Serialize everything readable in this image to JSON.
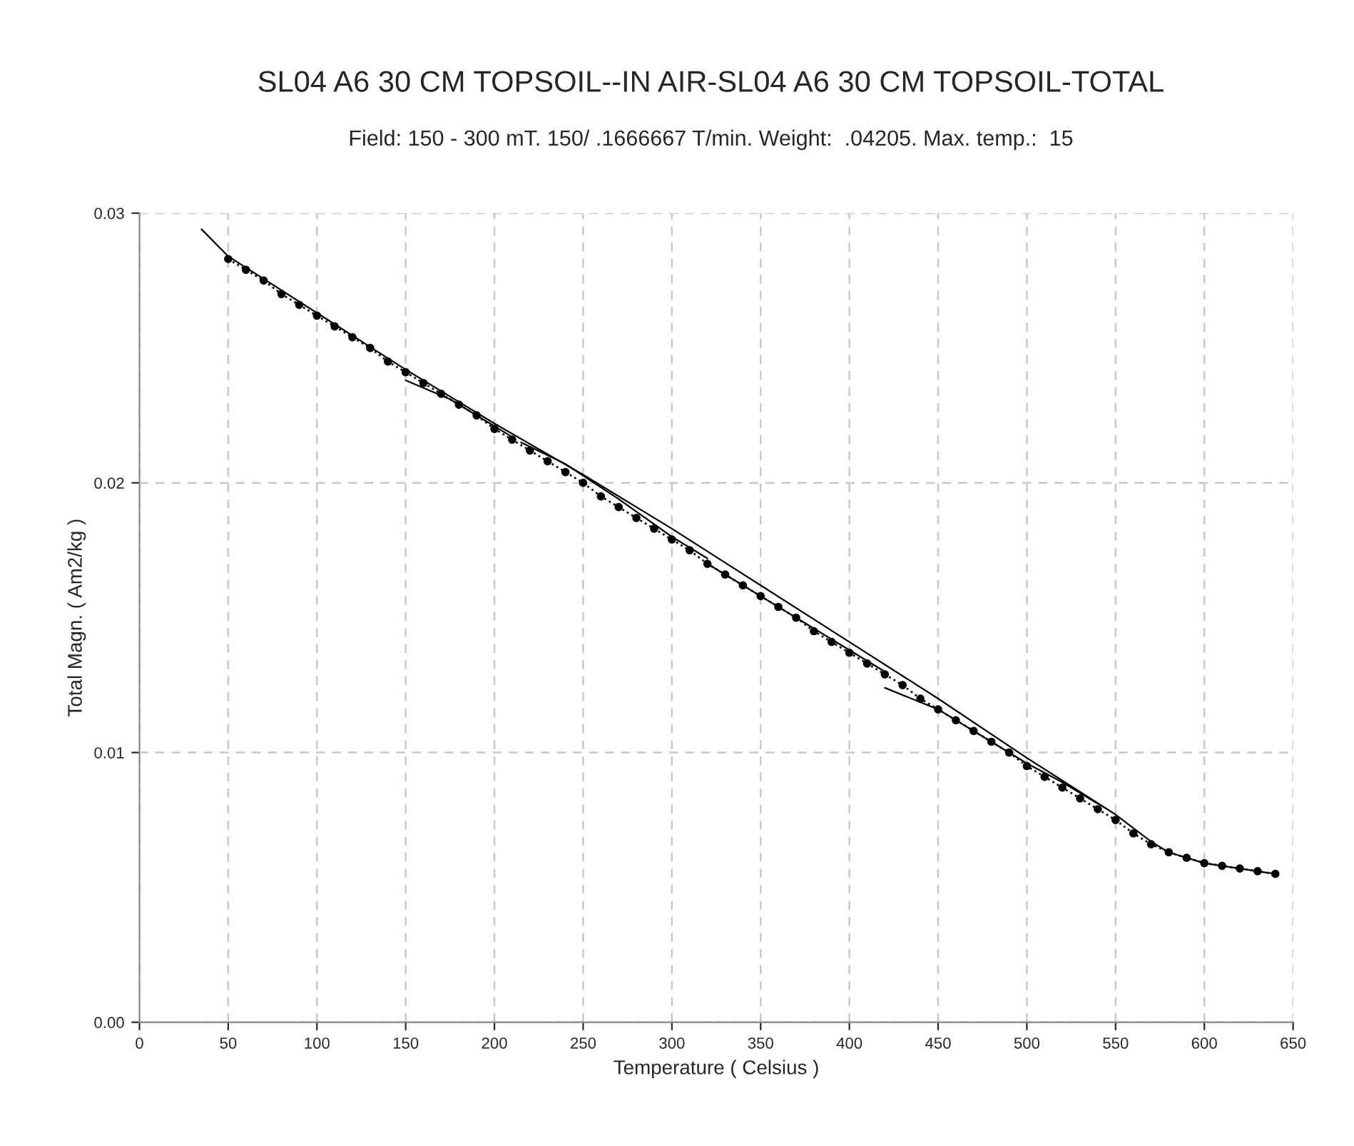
{
  "chart_data": {
    "type": "line",
    "title": "SL04 A6 30 CM TOPSOIL--IN AIR-SL04 A6 30 CM TOPSOIL-TOTAL",
    "subtitle": "Field: 150 - 300 mT. 150/ .1666667 T/min. Weight:  .04205. Max. temp.:  15",
    "xlabel": "Temperature ( Celsius )",
    "ylabel": "Total Magn. ( Am2/kg )",
    "xlim": [
      0,
      650
    ],
    "xticks": [
      0,
      50,
      100,
      150,
      200,
      250,
      300,
      350,
      400,
      450,
      500,
      550,
      600,
      650
    ],
    "ylim": [
      0,
      0.03
    ],
    "yticks": [
      {
        "value": 0,
        "label": "0.00"
      },
      {
        "value": 0.01,
        "label": "0.01"
      },
      {
        "value": 0.02,
        "label": "0.02"
      },
      {
        "value": 0.03,
        "label": "0.03"
      }
    ],
    "grid": true,
    "line_style": "solid",
    "series": [
      {
        "color": "#000000",
        "marker": "none",
        "x": [
          35,
          50,
          100,
          150,
          200,
          250,
          300,
          350,
          400,
          450,
          500,
          550,
          570,
          580,
          600,
          640
        ],
        "values": [
          0.0294,
          0.0284,
          0.0263,
          0.0242,
          0.0222,
          0.0203,
          0.0183,
          0.0162,
          0.0141,
          0.012,
          0.0098,
          0.0077,
          0.0067,
          0.0063,
          0.0059,
          0.0055
        ]
      },
      {
        "color": "#000000",
        "marker": "none",
        "x": [
          150,
          175,
          200,
          210
        ],
        "values": [
          0.0238,
          0.0231,
          0.0221,
          0.0217
        ]
      },
      {
        "color": "#000000",
        "marker": "none",
        "x": [
          215,
          240,
          270,
          300,
          320
        ],
        "values": [
          0.0215,
          0.0207,
          0.0194,
          0.018,
          0.0172
        ]
      },
      {
        "color": "#000000",
        "marker": "none",
        "x": [
          320,
          350,
          380,
          400,
          420
        ],
        "values": [
          0.017,
          0.0158,
          0.0146,
          0.0138,
          0.013
        ]
      },
      {
        "color": "#000000",
        "marker": "none",
        "x": [
          420,
          450,
          480,
          500,
          520,
          540
        ],
        "values": [
          0.0124,
          0.0116,
          0.0104,
          0.0096,
          0.0089,
          0.0081
        ]
      },
      {
        "color": "#000000",
        "marker": "circle",
        "line_style": "dotted",
        "x": [
          50,
          60,
          70,
          80,
          90,
          100,
          110,
          120,
          130,
          140,
          150,
          160,
          170,
          180,
          190,
          200,
          210,
          220,
          230,
          240,
          250,
          260,
          270,
          280,
          290,
          300,
          310,
          320,
          330,
          340,
          350,
          360,
          370,
          380,
          390,
          400,
          410,
          420,
          430,
          440,
          450,
          460,
          470,
          480,
          490,
          500,
          510,
          520,
          530,
          540,
          550,
          560,
          570,
          580,
          590,
          600,
          610,
          620,
          630,
          640
        ],
        "values": [
          0.0283,
          0.0279,
          0.0275,
          0.027,
          0.0266,
          0.0262,
          0.0258,
          0.0254,
          0.025,
          0.0245,
          0.0241,
          0.0237,
          0.0233,
          0.0229,
          0.0225,
          0.022,
          0.0216,
          0.0212,
          0.0208,
          0.0204,
          0.02,
          0.0195,
          0.0191,
          0.0187,
          0.0183,
          0.0179,
          0.0175,
          0.017,
          0.0166,
          0.0162,
          0.0158,
          0.0154,
          0.015,
          0.0145,
          0.0141,
          0.0137,
          0.0133,
          0.0129,
          0.0125,
          0.012,
          0.0116,
          0.0112,
          0.0108,
          0.0104,
          0.01,
          0.0095,
          0.0091,
          0.0087,
          0.0083,
          0.0079,
          0.0075,
          0.007,
          0.0066,
          0.0063,
          0.0061,
          0.0059,
          0.0058,
          0.0057,
          0.0056,
          0.0055
        ]
      }
    ]
  }
}
